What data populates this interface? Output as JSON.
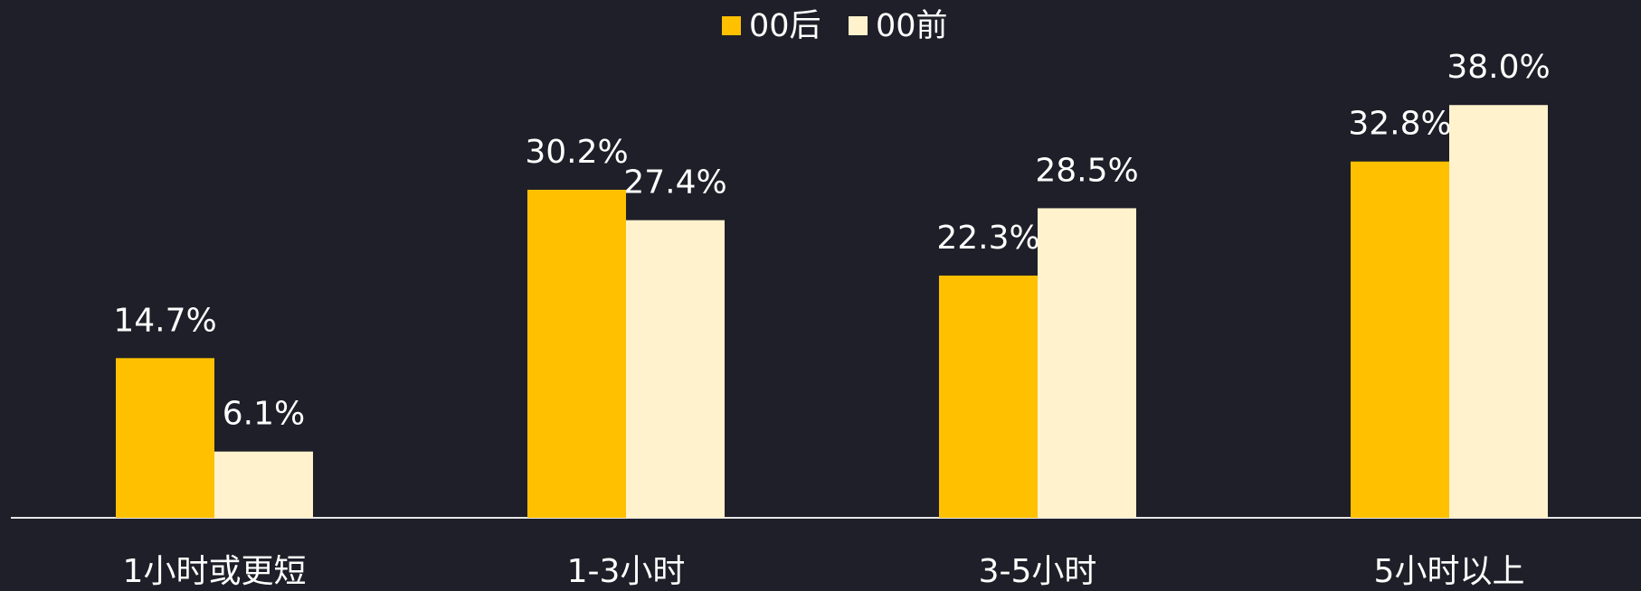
{
  "chart_data": {
    "type": "bar",
    "categories": [
      "1小时或更短",
      "1-3小时",
      "3-5小时",
      "5小时以上"
    ],
    "series": [
      {
        "name": "00后",
        "color": "#ffc000",
        "values": [
          14.7,
          30.2,
          22.3,
          32.8
        ],
        "value_labels": [
          "14.7%",
          "30.2%",
          "22.3%",
          "32.8%"
        ]
      },
      {
        "name": "00前",
        "color": "#fff2cc",
        "values": [
          6.1,
          27.4,
          28.5,
          38.0
        ],
        "value_labels": [
          "6.1%",
          "27.4%",
          "28.5%",
          "38.0%"
        ]
      }
    ]
  }
}
